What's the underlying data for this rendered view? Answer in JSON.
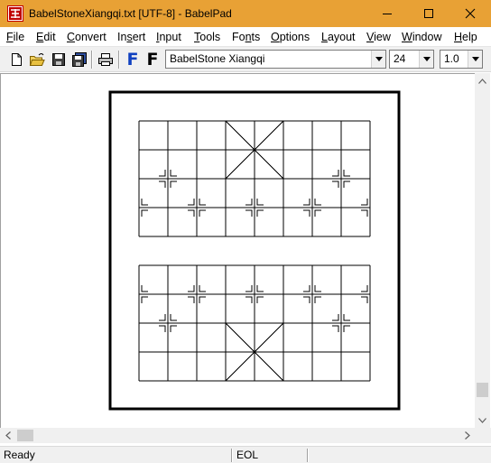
{
  "window": {
    "title": "BabelStoneXiangqi.txt [UTF-8] - BabelPad",
    "icons": [
      "app-icon",
      "minimize-icon",
      "maximize-icon",
      "close-icon"
    ]
  },
  "menu": {
    "items": [
      {
        "label": "File",
        "mnemonic": "F"
      },
      {
        "label": "Edit",
        "mnemonic": "E"
      },
      {
        "label": "Convert",
        "mnemonic": "C"
      },
      {
        "label": "Insert",
        "mnemonic": "s"
      },
      {
        "label": "Input",
        "mnemonic": "I"
      },
      {
        "label": "Tools",
        "mnemonic": "T"
      },
      {
        "label": "Fonts",
        "mnemonic": "n"
      },
      {
        "label": "Options",
        "mnemonic": "O"
      },
      {
        "label": "Layout",
        "mnemonic": "L"
      },
      {
        "label": "View",
        "mnemonic": "V"
      },
      {
        "label": "Window",
        "mnemonic": "W"
      },
      {
        "label": "Help",
        "mnemonic": "H"
      }
    ]
  },
  "toolbar": {
    "buttons": [
      "new-document-icon",
      "open-folder-icon",
      "save-icon",
      "save-all-icon",
      "print-icon",
      "font-f-blue-icon",
      "font-f-black-icon"
    ],
    "font_label_blue": "F",
    "font_label_black": "F",
    "font_name": "BabelStone Xiangqi",
    "font_size": "24",
    "line_spacing": "1.0"
  },
  "statusbar": {
    "status": "Ready",
    "eol": "EOL"
  },
  "scroll": {
    "vertical_position": 0.95,
    "horizontal_position": 0.0
  },
  "colors": {
    "titlebar": "#e8a135",
    "font_f_blue": "#1040c0"
  }
}
